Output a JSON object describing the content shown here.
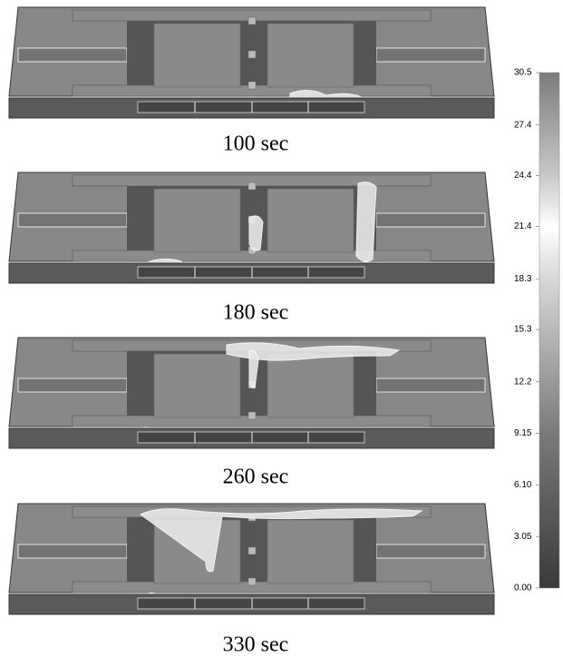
{
  "panels": [
    {
      "label": "100  sec"
    },
    {
      "label": "180  sec"
    },
    {
      "label": "260  sec"
    },
    {
      "label": "330  sec"
    }
  ],
  "colorbar": {
    "range": [
      0,
      30.5
    ],
    "ticks": [
      30.5,
      27.4,
      24.4,
      21.4,
      18.3,
      15.3,
      12.2,
      9.15,
      {
        "value": 6.1,
        "label": "6.10"
      },
      3.05,
      {
        "value": 0,
        "label": "0.00"
      }
    ]
  }
}
